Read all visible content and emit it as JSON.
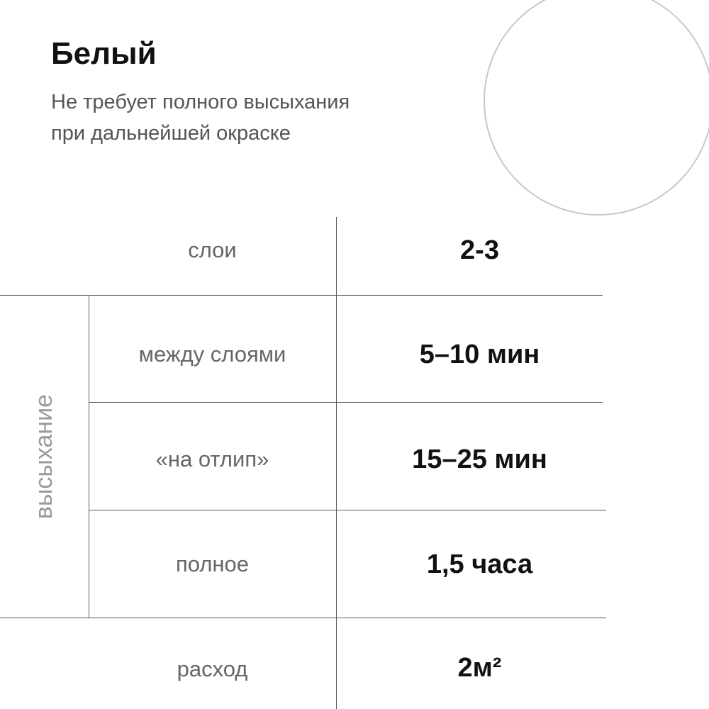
{
  "header": {
    "title": "Белый",
    "subtitle_line1": "Не требует полного высыхания",
    "subtitle_line2": "при дальнейшей окраске"
  },
  "table": {
    "group_label": "высыхание",
    "rows": [
      {
        "label": "слои",
        "value": "2-3"
      },
      {
        "label": "между слоями",
        "value": "5–10 мин"
      },
      {
        "label": "«на отлип»",
        "value": "15–25 мин"
      },
      {
        "label": "полное",
        "value": "1,5 часа"
      },
      {
        "label": "расход",
        "value": "2м²"
      }
    ]
  },
  "colors": {
    "title": "#111111",
    "subtitle": "#555555",
    "label": "#666666",
    "group_label": "#999999",
    "lines": "#5a5a5a",
    "circle": "#c8c8c8"
  }
}
